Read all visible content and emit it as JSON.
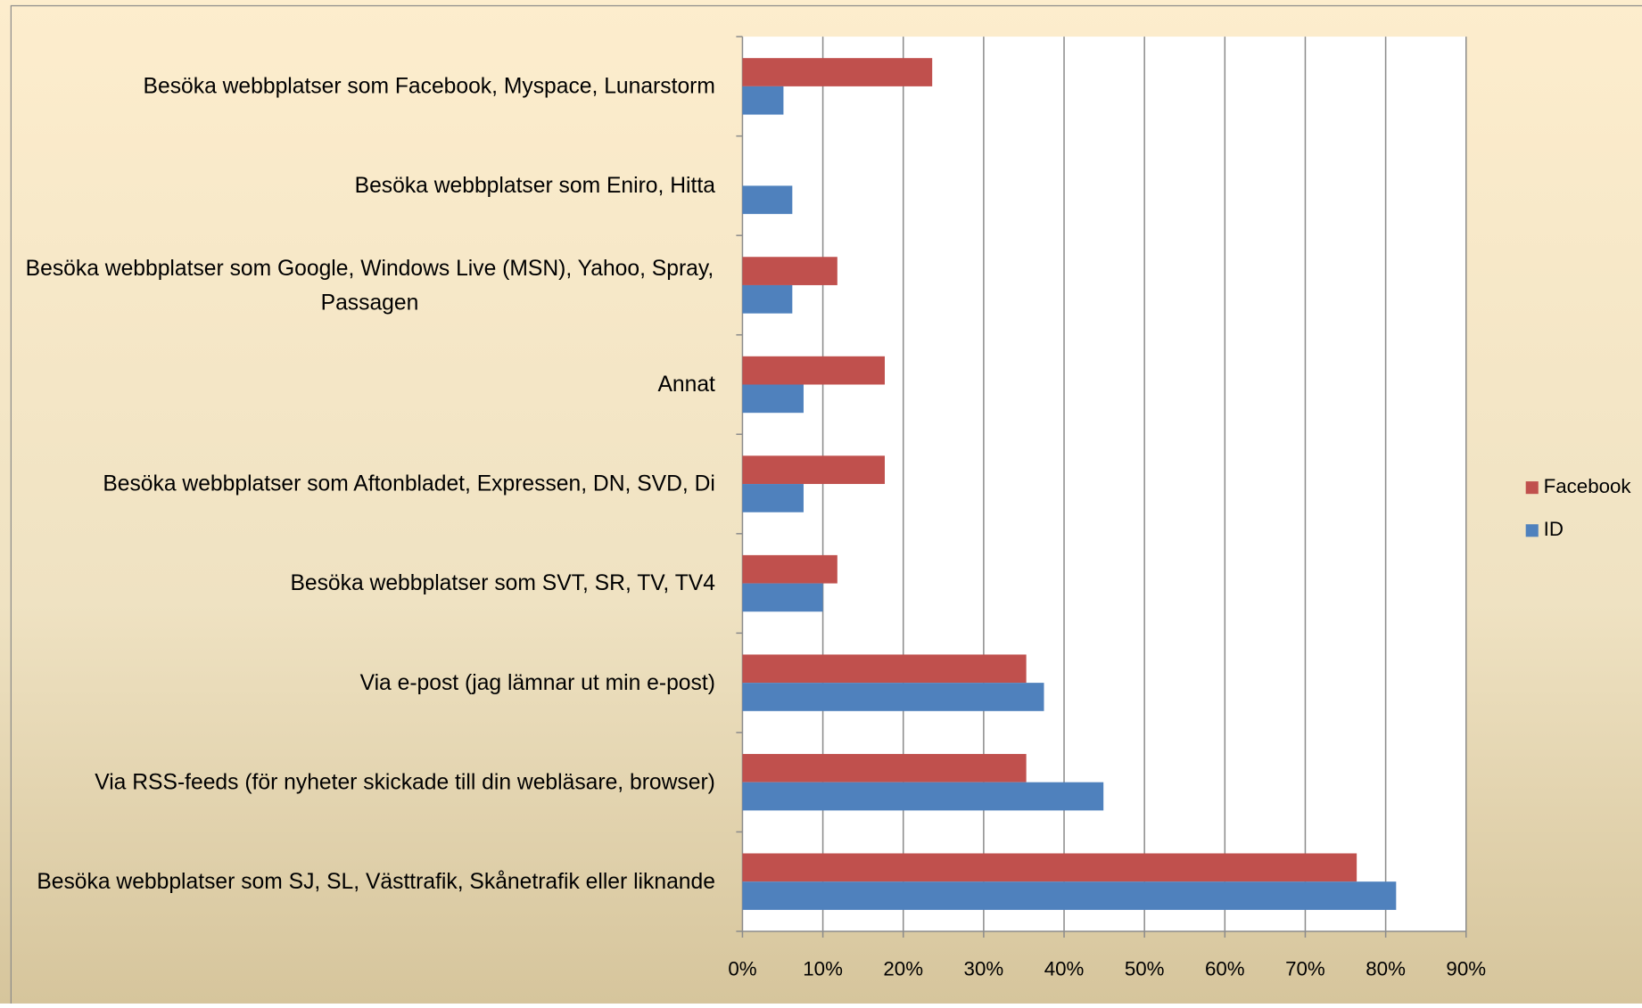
{
  "chart_data": {
    "type": "barh",
    "categories": [
      "Besöka webbplatser som Facebook, Myspace, Lunarstorm",
      "Besöka webbplatser som Eniro, Hitta",
      "Besöka webbplatser som Google, Windows Live (MSN), Yahoo, Spray, Passagen",
      "Annat",
      "Besöka webbplatser som Aftonbladet, Expressen, DN, SVD, Di",
      "Besöka webbplatser som SVT,  SR, TV, TV4",
      "Via e-post (jag lämnar ut min e-post)",
      "Via RSS-feeds (för nyheter skickade till din webläsare, browser)",
      "Besöka webbplatser som SJ, SL, Västtrafik, Skånetrafik eller liknande"
    ],
    "series": [
      {
        "name": "Facebook",
        "color": "#c0504d",
        "values": [
          23.6,
          0,
          11.8,
          17.7,
          17.7,
          11.8,
          35.3,
          35.3,
          76.4
        ]
      },
      {
        "name": "ID",
        "color": "#4f81bd",
        "values": [
          5.1,
          6.2,
          6.2,
          7.6,
          7.6,
          10.0,
          37.5,
          44.9,
          81.3
        ]
      }
    ],
    "xlim": [
      0,
      90
    ],
    "xticks": [
      {
        "value": 0,
        "label": "0%"
      },
      {
        "value": 10,
        "label": "10%"
      },
      {
        "value": 20,
        "label": "20%"
      },
      {
        "value": 30,
        "label": "30%"
      },
      {
        "value": 40,
        "label": "40%"
      },
      {
        "value": 50,
        "label": "50%"
      },
      {
        "value": 60,
        "label": "60%"
      },
      {
        "value": 70,
        "label": "70%"
      },
      {
        "value": 80,
        "label": "80%"
      },
      {
        "value": 90,
        "label": "90%"
      }
    ],
    "grid": true,
    "legend": "right"
  }
}
